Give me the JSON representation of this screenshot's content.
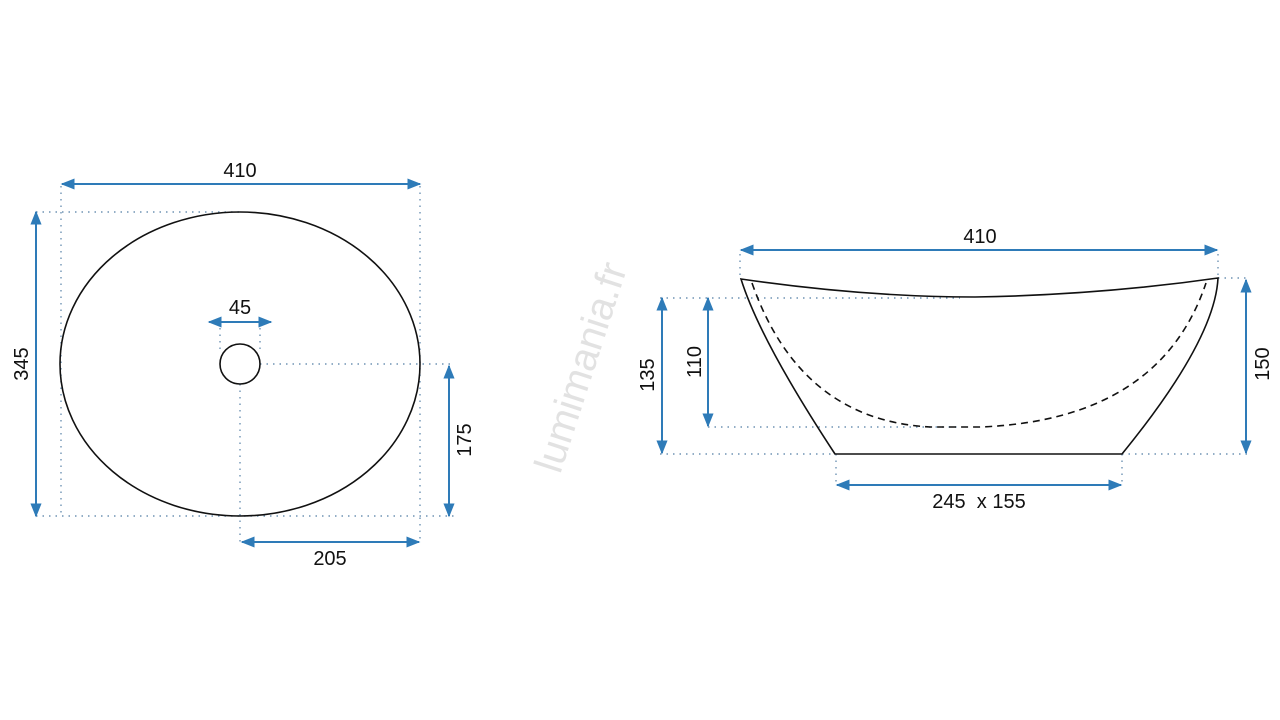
{
  "watermark": "lumimania.fr",
  "colors": {
    "dimension": "#2e7bb8",
    "outline": "#111111",
    "extension": "#6f93b4"
  },
  "top_view": {
    "width_label": "410",
    "depth_label": "345",
    "drain_label": "45",
    "drain_offset_y_label": "175",
    "drain_offset_x_label": "205"
  },
  "side_view": {
    "width_label": "410",
    "height_label": "150",
    "rim_height_label": "135",
    "inner_depth_label": "110",
    "base_label": "245  x 155"
  }
}
